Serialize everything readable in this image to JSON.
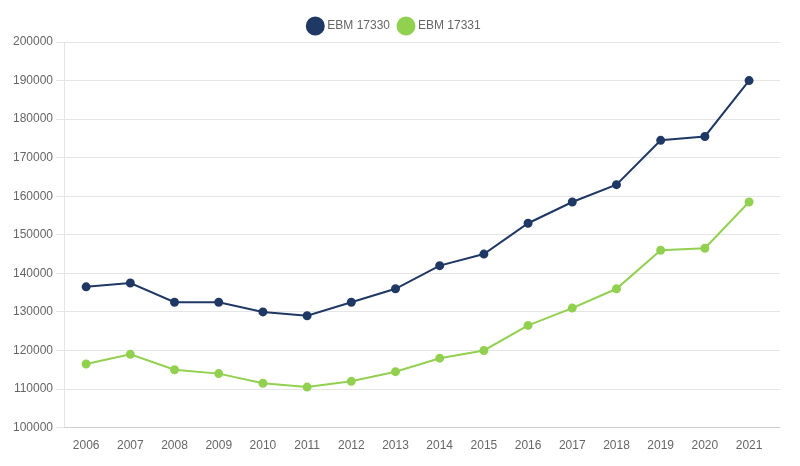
{
  "chart_data": {
    "type": "line",
    "x": [
      2006,
      2007,
      2008,
      2009,
      2010,
      2011,
      2012,
      2013,
      2014,
      2015,
      2016,
      2017,
      2018,
      2019,
      2020,
      2021
    ],
    "series": [
      {
        "name": "EBM 17330",
        "color": "#1F3864",
        "marker": "circle",
        "values": [
          136500,
          137500,
          132500,
          132500,
          130000,
          129000,
          132500,
          136000,
          142000,
          145000,
          153000,
          158500,
          163000,
          174500,
          175500,
          190000
        ]
      },
      {
        "name": "EBM 17331",
        "color": "#92D050",
        "marker": "circle",
        "values": [
          116500,
          119000,
          115000,
          114000,
          111500,
          110500,
          112000,
          114500,
          118000,
          120000,
          126500,
          131000,
          136000,
          146000,
          146500,
          158500
        ]
      }
    ],
    "xlim": [
      2005.5,
      2021.7
    ],
    "xticks": [
      2006,
      2007,
      2008,
      2009,
      2010,
      2011,
      2012,
      2013,
      2014,
      2015,
      2016,
      2017,
      2018,
      2019,
      2020,
      2021
    ],
    "ylim": [
      100000,
      200000
    ],
    "yticks": [
      100000,
      110000,
      120000,
      130000,
      140000,
      150000,
      160000,
      170000,
      180000,
      190000,
      200000
    ],
    "grid": true,
    "legend": "top"
  }
}
